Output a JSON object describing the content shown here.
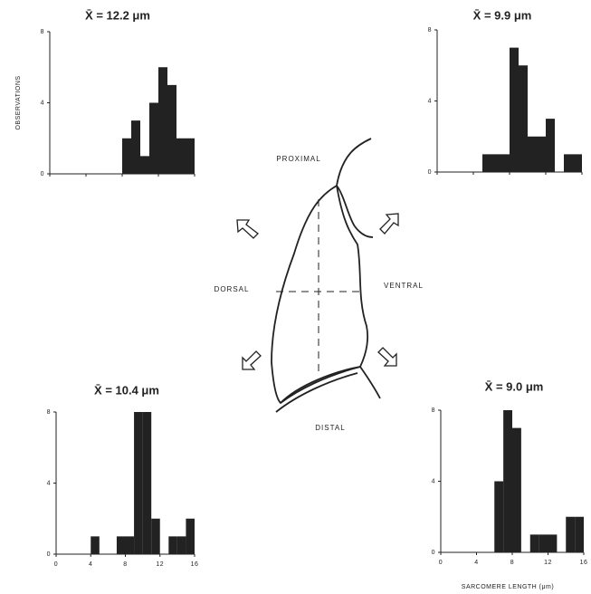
{
  "chart_data": [
    {
      "type": "histogram",
      "title": "X̄ = 12.2 μm",
      "y_label": "OBSERVATIONS",
      "bins": [
        0,
        1,
        2,
        3,
        4,
        5,
        6,
        7,
        8,
        9,
        10,
        11,
        12,
        13,
        14,
        15,
        16
      ],
      "values": [
        0,
        0,
        0,
        0,
        0,
        0,
        0,
        0,
        2,
        3,
        1,
        4,
        6,
        5,
        2,
        2
      ],
      "color": "#222222",
      "xlim": [
        0,
        16
      ],
      "xticks": [
        0,
        4,
        8,
        12,
        16
      ],
      "xtick_labels": false,
      "ylim": [
        0,
        8
      ],
      "yticks": [
        0,
        4,
        8
      ]
    },
    {
      "type": "histogram",
      "title": "X̄ = 9.9 μm",
      "bins": [
        0,
        1,
        2,
        3,
        4,
        5,
        6,
        7,
        8,
        9,
        10,
        11,
        12,
        13,
        14,
        15,
        16
      ],
      "values": [
        0,
        0,
        0,
        0,
        0,
        1,
        1,
        1,
        7,
        6,
        2,
        2,
        3,
        0,
        1,
        1
      ],
      "color": "#222222",
      "xlim": [
        0,
        16
      ],
      "xticks": [
        0,
        4,
        8,
        12,
        16
      ],
      "xtick_labels": false,
      "ylim": [
        0,
        8
      ],
      "yticks": [
        0,
        4,
        8
      ]
    },
    {
      "type": "histogram",
      "title": "X̄ = 10.4 μm",
      "bins": [
        0,
        1,
        2,
        3,
        4,
        5,
        6,
        7,
        8,
        9,
        10,
        11,
        12,
        13,
        14,
        15,
        16
      ],
      "values": [
        0,
        0,
        0,
        0,
        1,
        0,
        0,
        1,
        1,
        8,
        8,
        2,
        0,
        1,
        1,
        2
      ],
      "color": "#222222",
      "xlim": [
        0,
        16
      ],
      "xticks": [
        0,
        4,
        8,
        12,
        16
      ],
      "xtick_labels": true,
      "ylim": [
        0,
        8
      ],
      "yticks": [
        0,
        4,
        8
      ]
    },
    {
      "type": "histogram",
      "title": "X̄ = 9.0 μm",
      "x_label": "SARCOMERE LENGTH (μm)",
      "bins": [
        0,
        1,
        2,
        3,
        4,
        5,
        6,
        7,
        8,
        9,
        10,
        11,
        12,
        13,
        14,
        15,
        16
      ],
      "values": [
        0,
        0,
        0,
        0,
        0,
        0,
        4,
        8,
        7,
        0,
        1,
        1,
        1,
        0,
        2,
        2
      ],
      "color": "#222222",
      "xlim": [
        0,
        16
      ],
      "xticks": [
        0,
        4,
        8,
        12,
        16
      ],
      "xtick_labels": true,
      "ylim": [
        0,
        8
      ],
      "yticks": [
        0,
        4,
        8
      ]
    }
  ],
  "diagram": {
    "proximal": "PROXIMAL",
    "dorsal": "DORSAL",
    "ventral": "VENTRAL",
    "distal": "DISTAL"
  }
}
